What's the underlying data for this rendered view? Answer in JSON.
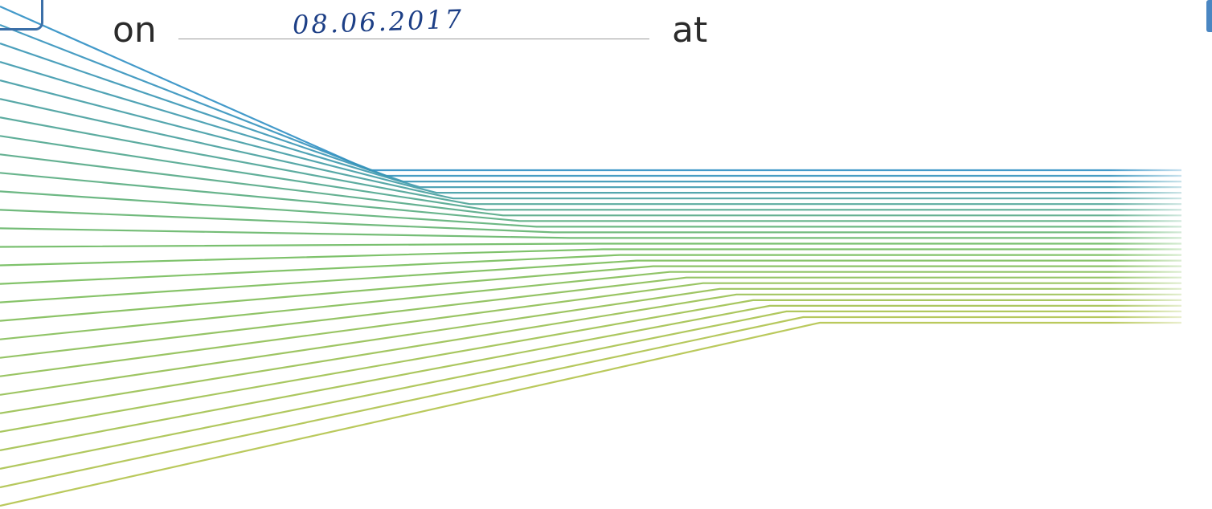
{
  "form": {
    "on_label": "on",
    "date_value": "08.06.2017",
    "at_label": "at"
  },
  "decoration": {
    "type": "fanned-lines",
    "line_count": 28,
    "colors": {
      "blue": "#2f8fc4",
      "green": "#6dbb5c",
      "yellow_green": "#b3c34a",
      "bracket": "#3b6fa8"
    }
  }
}
